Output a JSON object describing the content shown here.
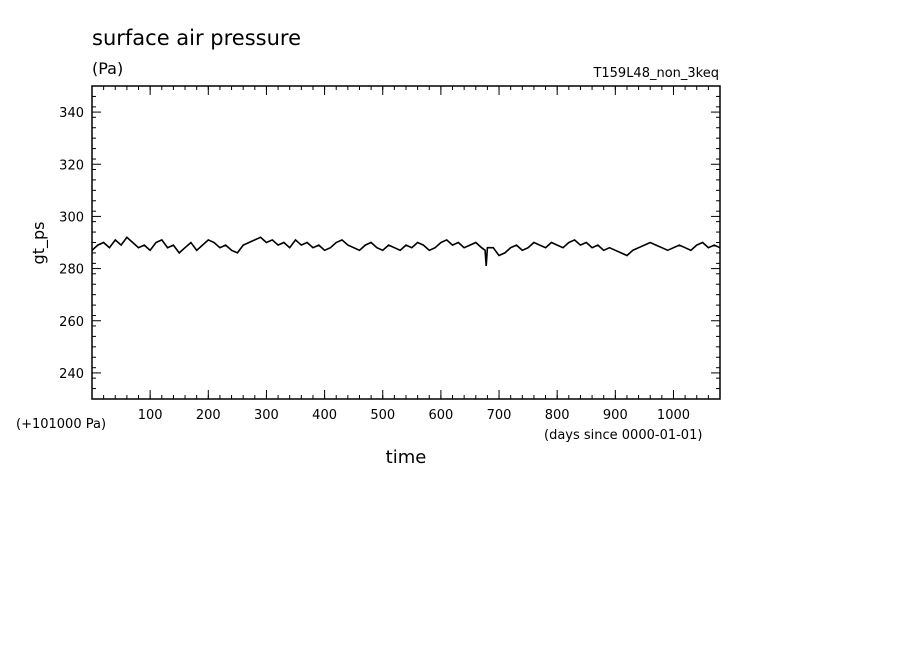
{
  "chart_data": {
    "type": "line",
    "title": "surface air pressure",
    "units": "(Pa)",
    "run_label": "T159L48_non_3keq",
    "ylabel": "gt_ps",
    "xlabel": "time",
    "x_units": "(days since 0000-01-01)",
    "y_offset_label": "(+101000 Pa)",
    "xlim": [
      0,
      1080
    ],
    "ylim": [
      230,
      350
    ],
    "x_ticks": [
      100,
      200,
      300,
      400,
      500,
      600,
      700,
      800,
      900,
      1000
    ],
    "y_ticks": [
      240,
      260,
      280,
      300,
      320,
      340
    ],
    "grid": false,
    "series": [
      {
        "x": [
          0,
          10,
          20,
          30,
          40,
          50,
          60,
          70,
          80,
          90,
          100,
          110,
          120,
          130,
          140,
          150,
          160,
          170,
          180,
          190,
          200,
          210,
          220,
          230,
          240,
          250,
          260,
          270,
          280,
          290,
          300,
          310,
          320,
          330,
          340,
          350,
          360,
          370,
          380,
          390,
          400,
          410,
          420,
          430,
          440,
          450,
          460,
          470,
          480,
          490,
          500,
          510,
          520,
          530,
          540,
          550,
          560,
          570,
          580,
          590,
          600,
          610,
          620,
          630,
          640,
          650,
          660,
          670,
          676,
          678,
          680,
          690,
          700,
          710,
          720,
          730,
          740,
          750,
          760,
          770,
          780,
          790,
          800,
          810,
          820,
          830,
          840,
          850,
          860,
          870,
          880,
          890,
          900,
          910,
          920,
          930,
          940,
          950,
          960,
          970,
          980,
          990,
          1000,
          1010,
          1020,
          1030,
          1040,
          1050,
          1060,
          1070,
          1080
        ],
        "y": [
          287,
          289,
          290,
          288,
          291,
          289,
          292,
          290,
          288,
          289,
          287,
          290,
          291,
          288,
          289,
          286,
          288,
          290,
          287,
          289,
          291,
          290,
          288,
          289,
          287,
          286,
          289,
          290,
          291,
          292,
          290,
          291,
          289,
          290,
          288,
          291,
          289,
          290,
          288,
          289,
          287,
          288,
          290,
          291,
          289,
          288,
          287,
          289,
          290,
          288,
          287,
          289,
          288,
          287,
          289,
          288,
          290,
          289,
          287,
          288,
          290,
          291,
          289,
          290,
          288,
          289,
          290,
          288,
          287,
          281,
          288,
          288,
          285,
          286,
          288,
          289,
          287,
          288,
          290,
          289,
          288,
          290,
          289,
          288,
          290,
          291,
          289,
          290,
          288,
          289,
          287,
          288,
          287,
          286,
          285,
          287,
          288,
          289,
          290,
          289,
          288,
          287,
          288,
          289,
          288,
          287,
          289,
          290,
          288,
          289,
          288
        ]
      }
    ]
  }
}
